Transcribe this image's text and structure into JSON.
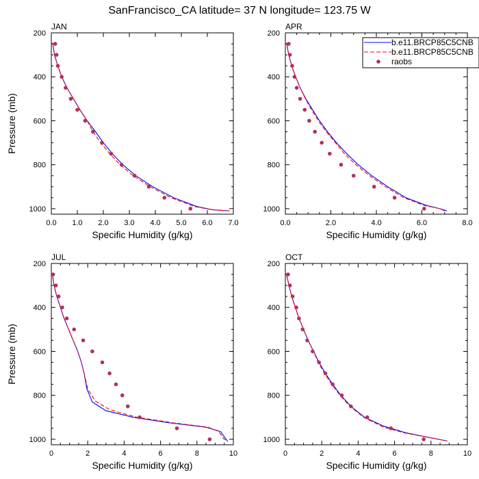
{
  "title": "SanFrancisco_CA  latitude= 37 N longitude= 123.75 W",
  "legend": {
    "entries": [
      {
        "label": "b.e11.BRCP85C5CNB",
        "style": "solid",
        "color": "#0000ff"
      },
      {
        "label": "b.e11.BRCP85C5CNB",
        "style": "dashed",
        "color": "#ff0000"
      },
      {
        "label": "raobs",
        "style": "marker",
        "color": "#b03060"
      }
    ]
  },
  "chart_data": [
    {
      "type": "line",
      "panel_label": "JAN",
      "xlabel": "Specific Humidity (g/kg)",
      "ylabel": "Pressure (mb)",
      "xlim": [
        0,
        7
      ],
      "ylim": [
        200,
        1025
      ],
      "y_inverted": true,
      "xticks": [
        "0.0",
        "1.0",
        "2.0",
        "3.0",
        "4.0",
        "5.0",
        "6.0",
        "7.0"
      ],
      "yticks": [
        "200",
        "400",
        "600",
        "800",
        "1000"
      ],
      "series": [
        {
          "name": "b.e11.BRCP85C5CNB",
          "style": "solid",
          "color": "#0000ff",
          "points": [
            [
              0.05,
              245
            ],
            [
              0.12,
              300
            ],
            [
              0.25,
              350
            ],
            [
              0.4,
              400
            ],
            [
              0.6,
              450
            ],
            [
              0.85,
              500
            ],
            [
              1.1,
              550
            ],
            [
              1.38,
              600
            ],
            [
              1.7,
              650
            ],
            [
              2.0,
              700
            ],
            [
              2.35,
              750
            ],
            [
              2.75,
              800
            ],
            [
              3.25,
              850
            ],
            [
              3.9,
              900
            ],
            [
              4.7,
              950
            ],
            [
              5.6,
              990
            ],
            [
              6.2,
              1005
            ],
            [
              6.85,
              1010
            ]
          ]
        },
        {
          "name": "b.e11.BRCP85C5CNB",
          "style": "dashed",
          "color": "#ff0000",
          "points": [
            [
              0.05,
              245
            ],
            [
              0.12,
              300
            ],
            [
              0.25,
              350
            ],
            [
              0.4,
              400
            ],
            [
              0.6,
              450
            ],
            [
              0.85,
              500
            ],
            [
              1.1,
              550
            ],
            [
              1.38,
              600
            ],
            [
              1.6,
              650
            ],
            [
              1.9,
              700
            ],
            [
              2.25,
              750
            ],
            [
              2.65,
              800
            ],
            [
              3.15,
              850
            ],
            [
              3.8,
              900
            ],
            [
              4.6,
              950
            ],
            [
              5.5,
              990
            ],
            [
              6.2,
              1005
            ],
            [
              6.9,
              1010
            ]
          ]
        },
        {
          "name": "raobs",
          "style": "marker",
          "color": "#b03060",
          "points": [
            [
              0.15,
              250
            ],
            [
              0.2,
              300
            ],
            [
              0.25,
              350
            ],
            [
              0.4,
              400
            ],
            [
              0.55,
              450
            ],
            [
              0.75,
              500
            ],
            [
              1.0,
              550
            ],
            [
              1.3,
              600
            ],
            [
              1.6,
              650
            ],
            [
              1.95,
              700
            ],
            [
              2.3,
              750
            ],
            [
              2.7,
              800
            ],
            [
              3.2,
              850
            ],
            [
              3.75,
              900
            ],
            [
              4.35,
              950
            ],
            [
              5.35,
              1000
            ]
          ]
        }
      ]
    },
    {
      "type": "line",
      "panel_label": "APR",
      "xlabel": "Specific Humidity (g/kg)",
      "ylabel": "Pressure (mb)",
      "xlim": [
        0,
        8
      ],
      "ylim": [
        200,
        1025
      ],
      "y_inverted": true,
      "xticks": [
        "0.0",
        "2.0",
        "4.0",
        "6.0",
        "8.0"
      ],
      "yticks": [
        "200",
        "400",
        "600",
        "800",
        "1000"
      ],
      "series": [
        {
          "name": "b.e11.BRCP85C5CNB",
          "style": "solid",
          "color": "#0000ff",
          "points": [
            [
              0.05,
              245
            ],
            [
              0.15,
              300
            ],
            [
              0.28,
              350
            ],
            [
              0.45,
              400
            ],
            [
              0.65,
              450
            ],
            [
              0.9,
              500
            ],
            [
              1.2,
              550
            ],
            [
              1.5,
              600
            ],
            [
              1.85,
              650
            ],
            [
              2.25,
              700
            ],
            [
              2.7,
              750
            ],
            [
              3.2,
              800
            ],
            [
              3.8,
              850
            ],
            [
              4.5,
              900
            ],
            [
              5.3,
              950
            ],
            [
              6.2,
              985
            ],
            [
              6.8,
              1000
            ],
            [
              7.1,
              1010
            ]
          ]
        },
        {
          "name": "b.e11.BRCP85C5CNB",
          "style": "dashed",
          "color": "#ff0000",
          "points": [
            [
              0.05,
              245
            ],
            [
              0.15,
              300
            ],
            [
              0.28,
              350
            ],
            [
              0.45,
              400
            ],
            [
              0.65,
              450
            ],
            [
              0.88,
              500
            ],
            [
              1.15,
              550
            ],
            [
              1.45,
              600
            ],
            [
              1.8,
              650
            ],
            [
              2.2,
              700
            ],
            [
              2.6,
              750
            ],
            [
              3.1,
              800
            ],
            [
              3.7,
              850
            ],
            [
              4.4,
              900
            ],
            [
              5.2,
              950
            ],
            [
              6.1,
              985
            ],
            [
              6.8,
              1000
            ],
            [
              7.0,
              1010
            ]
          ]
        },
        {
          "name": "raobs",
          "style": "marker",
          "color": "#b03060",
          "points": [
            [
              0.15,
              250
            ],
            [
              0.2,
              300
            ],
            [
              0.3,
              350
            ],
            [
              0.4,
              400
            ],
            [
              0.5,
              450
            ],
            [
              0.65,
              500
            ],
            [
              0.85,
              550
            ],
            [
              1.05,
              600
            ],
            [
              1.3,
              650
            ],
            [
              1.6,
              700
            ],
            [
              1.95,
              750
            ],
            [
              2.45,
              800
            ],
            [
              3.0,
              850
            ],
            [
              3.9,
              900
            ],
            [
              4.8,
              950
            ],
            [
              6.1,
              1000
            ]
          ]
        }
      ]
    },
    {
      "type": "line",
      "panel_label": "JUL",
      "xlabel": "Specific Humidity (g/kg)",
      "ylabel": "Pressure (mb)",
      "xlim": [
        0,
        10
      ],
      "ylim": [
        200,
        1025
      ],
      "y_inverted": true,
      "xticks": [
        "0",
        "2",
        "4",
        "6",
        "8",
        "10"
      ],
      "yticks": [
        "200",
        "400",
        "600",
        "800",
        "1000"
      ],
      "series": [
        {
          "name": "b.e11.BRCP85C5CNB",
          "style": "solid",
          "color": "#0000ff",
          "points": [
            [
              0.05,
              245
            ],
            [
              0.15,
              300
            ],
            [
              0.3,
              350
            ],
            [
              0.5,
              400
            ],
            [
              0.7,
              450
            ],
            [
              0.95,
              500
            ],
            [
              1.2,
              550
            ],
            [
              1.45,
              600
            ],
            [
              1.65,
              650
            ],
            [
              1.8,
              700
            ],
            [
              1.95,
              770
            ],
            [
              2.25,
              830
            ],
            [
              3.0,
              870
            ],
            [
              4.5,
              900
            ],
            [
              6.5,
              925
            ],
            [
              8.5,
              945
            ],
            [
              9.3,
              965
            ],
            [
              9.6,
              1000
            ],
            [
              9.7,
              1010
            ]
          ]
        },
        {
          "name": "b.e11.BRCP85C5CNB",
          "style": "dashed",
          "color": "#ff0000",
          "points": [
            [
              0.05,
              245
            ],
            [
              0.15,
              300
            ],
            [
              0.3,
              350
            ],
            [
              0.5,
              400
            ],
            [
              0.7,
              450
            ],
            [
              0.95,
              500
            ],
            [
              1.2,
              550
            ],
            [
              1.45,
              600
            ],
            [
              1.65,
              650
            ],
            [
              1.8,
              700
            ],
            [
              2.0,
              770
            ],
            [
              2.4,
              825
            ],
            [
              3.2,
              865
            ],
            [
              4.7,
              900
            ],
            [
              6.7,
              925
            ],
            [
              8.6,
              945
            ],
            [
              9.2,
              965
            ],
            [
              9.5,
              1000
            ],
            [
              9.7,
              1010
            ]
          ]
        },
        {
          "name": "raobs",
          "style": "marker",
          "color": "#b03060",
          "points": [
            [
              0.1,
              250
            ],
            [
              0.25,
              300
            ],
            [
              0.4,
              350
            ],
            [
              0.6,
              400
            ],
            [
              0.85,
              450
            ],
            [
              1.25,
              500
            ],
            [
              1.75,
              550
            ],
            [
              2.25,
              600
            ],
            [
              2.8,
              650
            ],
            [
              3.2,
              700
            ],
            [
              3.55,
              750
            ],
            [
              3.9,
              800
            ],
            [
              4.2,
              850
            ],
            [
              4.85,
              900
            ],
            [
              6.9,
              950
            ],
            [
              8.7,
              1000
            ]
          ]
        }
      ]
    },
    {
      "type": "line",
      "panel_label": "OCT",
      "xlabel": "Specific Humidity (g/kg)",
      "ylabel": "Pressure (mb)",
      "xlim": [
        0,
        10
      ],
      "ylim": [
        200,
        1025
      ],
      "y_inverted": true,
      "xticks": [
        "0",
        "2",
        "4",
        "6",
        "8",
        "10"
      ],
      "yticks": [
        "200",
        "400",
        "600",
        "800",
        "1000"
      ],
      "series": [
        {
          "name": "b.e11.BRCP85C5CNB",
          "style": "solid",
          "color": "#0000ff",
          "points": [
            [
              0.05,
              245
            ],
            [
              0.2,
              300
            ],
            [
              0.35,
              350
            ],
            [
              0.55,
              400
            ],
            [
              0.75,
              450
            ],
            [
              1.0,
              500
            ],
            [
              1.25,
              550
            ],
            [
              1.55,
              600
            ],
            [
              1.85,
              650
            ],
            [
              2.2,
              700
            ],
            [
              2.6,
              750
            ],
            [
              3.05,
              800
            ],
            [
              3.6,
              850
            ],
            [
              4.35,
              900
            ],
            [
              5.4,
              940
            ],
            [
              6.6,
              970
            ],
            [
              7.8,
              990
            ],
            [
              8.9,
              1008
            ]
          ]
        },
        {
          "name": "b.e11.BRCP85C5CNB",
          "style": "dashed",
          "color": "#ff0000",
          "points": [
            [
              0.05,
              245
            ],
            [
              0.2,
              300
            ],
            [
              0.35,
              350
            ],
            [
              0.55,
              400
            ],
            [
              0.75,
              450
            ],
            [
              1.0,
              500
            ],
            [
              1.25,
              550
            ],
            [
              1.55,
              600
            ],
            [
              1.8,
              650
            ],
            [
              2.15,
              700
            ],
            [
              2.55,
              750
            ],
            [
              3.0,
              800
            ],
            [
              3.55,
              850
            ],
            [
              4.3,
              900
            ],
            [
              5.4,
              945
            ],
            [
              6.6,
              972
            ],
            [
              7.8,
              990
            ],
            [
              8.9,
              1008
            ]
          ]
        },
        {
          "name": "raobs",
          "style": "marker",
          "color": "#b03060",
          "points": [
            [
              0.15,
              250
            ],
            [
              0.25,
              300
            ],
            [
              0.4,
              350
            ],
            [
              0.6,
              400
            ],
            [
              0.75,
              450
            ],
            [
              0.95,
              500
            ],
            [
              1.2,
              550
            ],
            [
              1.5,
              600
            ],
            [
              1.85,
              650
            ],
            [
              2.2,
              700
            ],
            [
              2.6,
              750
            ],
            [
              3.1,
              800
            ],
            [
              3.6,
              850
            ],
            [
              4.5,
              900
            ],
            [
              5.8,
              950
            ],
            [
              7.6,
              1000
            ]
          ]
        }
      ]
    }
  ]
}
